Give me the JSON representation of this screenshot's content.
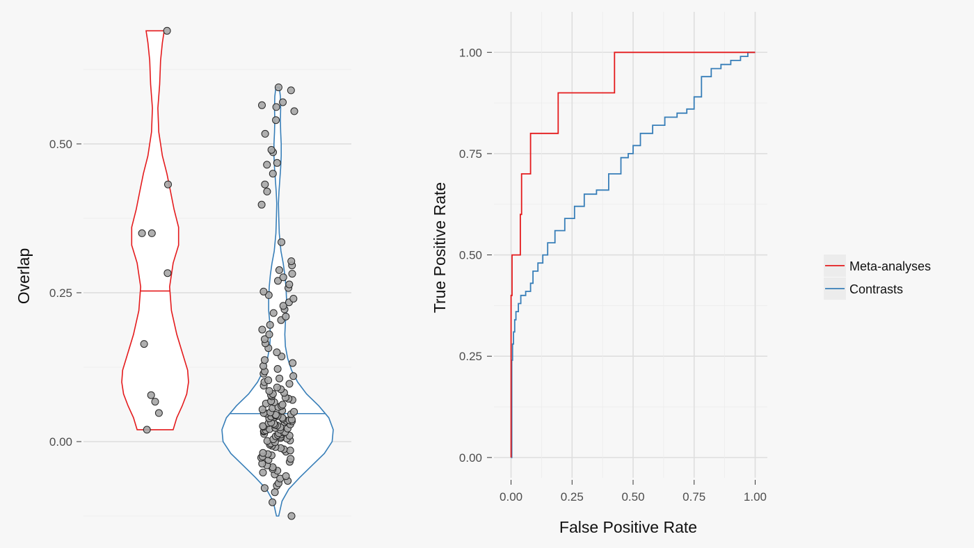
{
  "colors": {
    "background": "#f7f7f7",
    "grid_major": "#dedede",
    "grid_minor": "#ececec",
    "meta": "#e41a1c",
    "contrasts": "#377eb8",
    "point_fill": "#a6a6a6",
    "point_stroke": "#262626"
  },
  "chart_data": [
    {
      "type": "violin",
      "ylabel": "Overlap",
      "xlabel": "",
      "ylim": [
        -0.125,
        0.695
      ],
      "yticks": [
        0.0,
        0.25,
        0.5
      ],
      "ytick_labels": [
        "0.00",
        "0.25",
        "0.50"
      ],
      "grid": true,
      "series": [
        {
          "name": "Meta-analyses",
          "color": "#e41a1c",
          "range": [
            0.02,
            0.69
          ],
          "median": 0.253,
          "density_profile": [
            [
              0.02,
              0.2
            ],
            [
              0.04,
              0.24
            ],
            [
              0.06,
              0.3
            ],
            [
              0.08,
              0.35
            ],
            [
              0.1,
              0.37
            ],
            [
              0.12,
              0.36
            ],
            [
              0.15,
              0.3
            ],
            [
              0.18,
              0.24
            ],
            [
              0.22,
              0.18
            ],
            [
              0.26,
              0.16
            ],
            [
              0.3,
              0.2
            ],
            [
              0.33,
              0.26
            ],
            [
              0.36,
              0.26
            ],
            [
              0.39,
              0.21
            ],
            [
              0.42,
              0.17
            ],
            [
              0.45,
              0.13
            ],
            [
              0.48,
              0.08
            ],
            [
              0.52,
              0.04
            ],
            [
              0.56,
              0.03
            ],
            [
              0.6,
              0.05
            ],
            [
              0.64,
              0.06
            ],
            [
              0.67,
              0.08
            ],
            [
              0.69,
              0.1
            ]
          ],
          "points": [
            0.69,
            0.432,
            0.35,
            0.35,
            0.283,
            0.164,
            0.078,
            0.067,
            0.048,
            0.02
          ]
        },
        {
          "name": "Contrasts",
          "color": "#377eb8",
          "range": [
            -0.125,
            0.595
          ],
          "median": 0.047,
          "density_profile": [
            [
              -0.125,
              0.02
            ],
            [
              -0.1,
              0.08
            ],
            [
              -0.08,
              0.2
            ],
            [
              -0.06,
              0.4
            ],
            [
              -0.04,
              0.62
            ],
            [
              -0.02,
              0.84
            ],
            [
              0.0,
              0.98
            ],
            [
              0.02,
              1.0
            ],
            [
              0.04,
              0.92
            ],
            [
              0.06,
              0.74
            ],
            [
              0.08,
              0.52
            ],
            [
              0.1,
              0.36
            ],
            [
              0.12,
              0.25
            ],
            [
              0.14,
              0.18
            ],
            [
              0.16,
              0.14
            ],
            [
              0.18,
              0.13
            ],
            [
              0.2,
              0.14
            ],
            [
              0.22,
              0.16
            ],
            [
              0.24,
              0.16
            ],
            [
              0.26,
              0.15
            ],
            [
              0.28,
              0.13
            ],
            [
              0.3,
              0.1
            ],
            [
              0.32,
              0.06
            ],
            [
              0.35,
              0.03
            ],
            [
              0.38,
              0.02
            ],
            [
              0.4,
              0.015
            ],
            [
              0.42,
              0.025
            ],
            [
              0.44,
              0.04
            ],
            [
              0.46,
              0.055
            ],
            [
              0.48,
              0.065
            ],
            [
              0.5,
              0.065
            ],
            [
              0.52,
              0.055
            ],
            [
              0.54,
              0.05
            ],
            [
              0.56,
              0.055
            ],
            [
              0.58,
              0.05
            ],
            [
              0.595,
              0.03
            ]
          ],
          "points": [
            -0.125,
            -0.102,
            -0.085,
            -0.078,
            -0.074,
            -0.07,
            -0.066,
            -0.062,
            -0.058,
            -0.055,
            -0.052,
            -0.049,
            -0.046,
            -0.043,
            -0.04,
            -0.037,
            -0.034,
            -0.031,
            -0.029,
            -0.027,
            -0.025,
            -0.023,
            -0.021,
            -0.019,
            -0.017,
            -0.015,
            -0.013,
            -0.011,
            -0.009,
            -0.007,
            -0.005,
            -0.003,
            -0.001,
            0.001,
            0.002,
            0.004,
            0.005,
            0.006,
            0.008,
            0.009,
            0.01,
            0.011,
            0.012,
            0.013,
            0.014,
            0.015,
            0.016,
            0.017,
            0.018,
            0.019,
            0.02,
            0.021,
            0.022,
            0.023,
            0.024,
            0.025,
            0.026,
            0.027,
            0.028,
            0.029,
            0.03,
            0.031,
            0.032,
            0.033,
            0.034,
            0.035,
            0.036,
            0.037,
            0.038,
            0.039,
            0.04,
            0.041,
            0.042,
            0.043,
            0.044,
            0.045,
            0.046,
            0.047,
            0.048,
            0.049,
            0.05,
            0.052,
            0.054,
            0.056,
            0.058,
            0.06,
            0.062,
            0.064,
            0.066,
            0.068,
            0.07,
            0.072,
            0.074,
            0.076,
            0.078,
            0.08,
            0.082,
            0.085,
            0.088,
            0.091,
            0.094,
            0.097,
            0.1,
            0.103,
            0.106,
            0.11,
            0.114,
            0.118,
            0.122,
            0.127,
            0.132,
            0.137,
            0.143,
            0.15,
            0.157,
            0.165,
            0.172,
            0.18,
            0.188,
            0.196,
            0.204,
            0.21,
            0.216,
            0.222,
            0.228,
            0.234,
            0.24,
            0.246,
            0.252,
            0.258,
            0.264,
            0.27,
            0.276,
            0.282,
            0.288,
            0.296,
            0.303,
            0.335,
            0.398,
            0.42,
            0.432,
            0.45,
            0.465,
            0.468,
            0.486,
            0.49,
            0.517,
            0.54,
            0.555,
            0.562,
            0.565,
            0.57,
            0.59,
            0.595
          ]
        }
      ]
    },
    {
      "type": "line",
      "xlabel": "False Positive Rate",
      "ylabel": "True Positive Rate",
      "xlim": [
        -0.07,
        1.05
      ],
      "ylim": [
        -0.05,
        1.1
      ],
      "xticks": [
        0.0,
        0.25,
        0.5,
        0.75,
        1.0
      ],
      "xtick_labels": [
        "0.00",
        "0.25",
        "0.50",
        "0.75",
        "1.00"
      ],
      "yticks": [
        0.0,
        0.25,
        0.5,
        0.75,
        1.0
      ],
      "ytick_labels": [
        "0.00",
        "0.25",
        "0.50",
        "0.75",
        "1.00"
      ],
      "grid": true,
      "legend_position": "right",
      "series": [
        {
          "name": "Meta-analyses",
          "color": "#e41a1c",
          "step": true,
          "points": [
            [
              0.0,
              0.0
            ],
            [
              0.0,
              0.4
            ],
            [
              0.004,
              0.4
            ],
            [
              0.004,
              0.5
            ],
            [
              0.038,
              0.5
            ],
            [
              0.038,
              0.6
            ],
            [
              0.043,
              0.6
            ],
            [
              0.043,
              0.7
            ],
            [
              0.08,
              0.7
            ],
            [
              0.08,
              0.8
            ],
            [
              0.193,
              0.8
            ],
            [
              0.193,
              0.9
            ],
            [
              0.424,
              0.9
            ],
            [
              0.424,
              1.0
            ],
            [
              1.0,
              1.0
            ]
          ]
        },
        {
          "name": "Contrasts",
          "color": "#377eb8",
          "step": true,
          "points": [
            [
              0.0,
              0.0
            ],
            [
              0.003,
              0.24
            ],
            [
              0.006,
              0.28
            ],
            [
              0.01,
              0.31
            ],
            [
              0.015,
              0.34
            ],
            [
              0.02,
              0.36
            ],
            [
              0.03,
              0.38
            ],
            [
              0.04,
              0.4
            ],
            [
              0.06,
              0.41
            ],
            [
              0.08,
              0.43
            ],
            [
              0.09,
              0.46
            ],
            [
              0.11,
              0.48
            ],
            [
              0.13,
              0.5
            ],
            [
              0.15,
              0.53
            ],
            [
              0.18,
              0.56
            ],
            [
              0.22,
              0.59
            ],
            [
              0.26,
              0.62
            ],
            [
              0.3,
              0.65
            ],
            [
              0.35,
              0.66
            ],
            [
              0.4,
              0.7
            ],
            [
              0.45,
              0.74
            ],
            [
              0.48,
              0.75
            ],
            [
              0.5,
              0.77
            ],
            [
              0.53,
              0.8
            ],
            [
              0.58,
              0.82
            ],
            [
              0.63,
              0.84
            ],
            [
              0.68,
              0.85
            ],
            [
              0.72,
              0.86
            ],
            [
              0.75,
              0.89
            ],
            [
              0.78,
              0.94
            ],
            [
              0.82,
              0.96
            ],
            [
              0.86,
              0.97
            ],
            [
              0.9,
              0.98
            ],
            [
              0.94,
              0.99
            ],
            [
              0.97,
              1.0
            ],
            [
              1.0,
              1.0
            ]
          ]
        }
      ]
    }
  ]
}
